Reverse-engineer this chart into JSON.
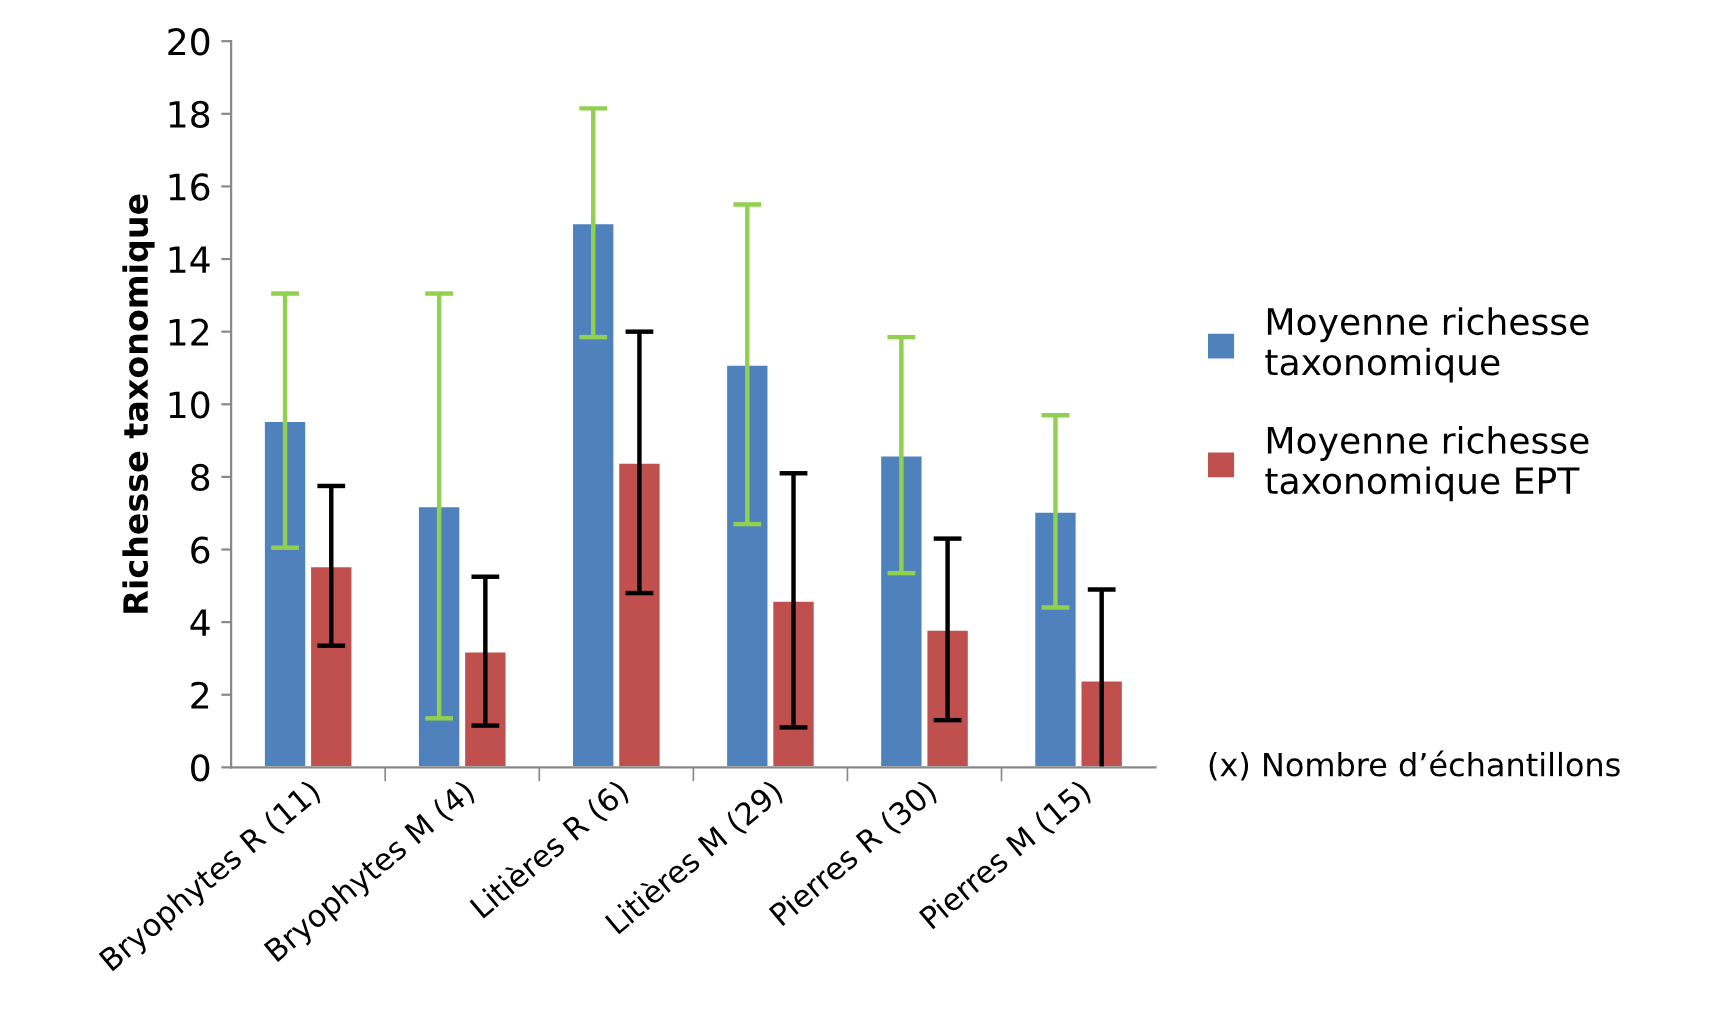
{
  "chart_data": {
    "type": "bar",
    "ylabel": "Richesse taxonomique",
    "categories": [
      "Bryophytes R (11)",
      "Bryophytes M (4)",
      "Litières R (6)",
      "Litières M (29)",
      "Pierres R (30)",
      "Pierres M (15)"
    ],
    "series": [
      {
        "name": "Moyenne richesse taxonomique",
        "color": "#4f81bd",
        "values": [
          9.55,
          7.2,
          15.0,
          11.1,
          8.6,
          7.05
        ],
        "errors": [
          3.5,
          5.85,
          3.15,
          4.4,
          3.25,
          2.65
        ]
      },
      {
        "name": "Moyenne richesse taxonomique EPT",
        "color": "#c0504d",
        "values": [
          5.55,
          3.2,
          8.4,
          4.6,
          3.8,
          2.4
        ],
        "errors": [
          2.2,
          2.05,
          3.6,
          3.5,
          2.5,
          2.5
        ]
      }
    ],
    "ylim": [
      0,
      20
    ],
    "yticks": [
      0,
      2,
      4,
      6,
      8,
      10,
      12,
      14,
      16,
      18,
      20
    ],
    "grid": false,
    "legend": "right",
    "annotations": [
      "(x) Nombre d’échantillons"
    ]
  }
}
